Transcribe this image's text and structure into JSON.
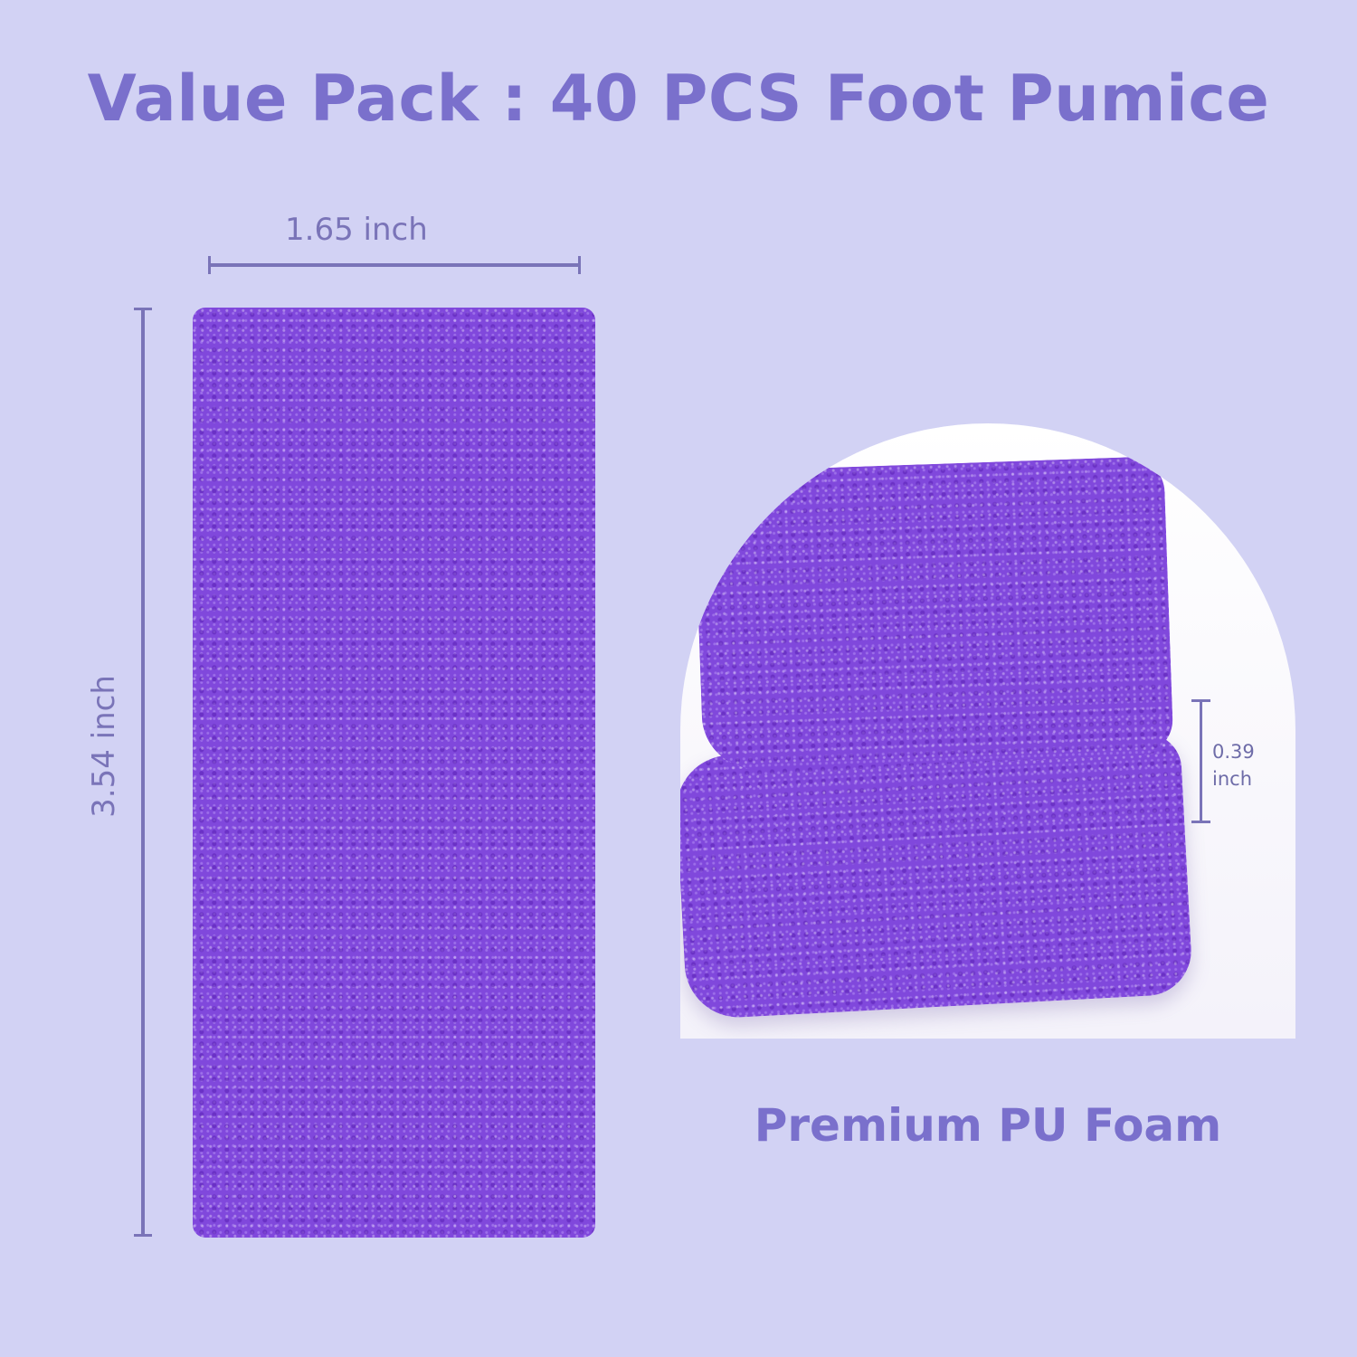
{
  "title": "Value Pack : 40 PCS Foot Pumice",
  "dimensions": {
    "width": "1.65 inch",
    "height": "3.54 inch",
    "thickness_value": "0.39",
    "thickness_unit": "inch"
  },
  "subtitle": "Premium PU Foam",
  "colors": {
    "background": "#d2d2f4",
    "accent": "#7a70cc",
    "product": "#8048dc"
  }
}
